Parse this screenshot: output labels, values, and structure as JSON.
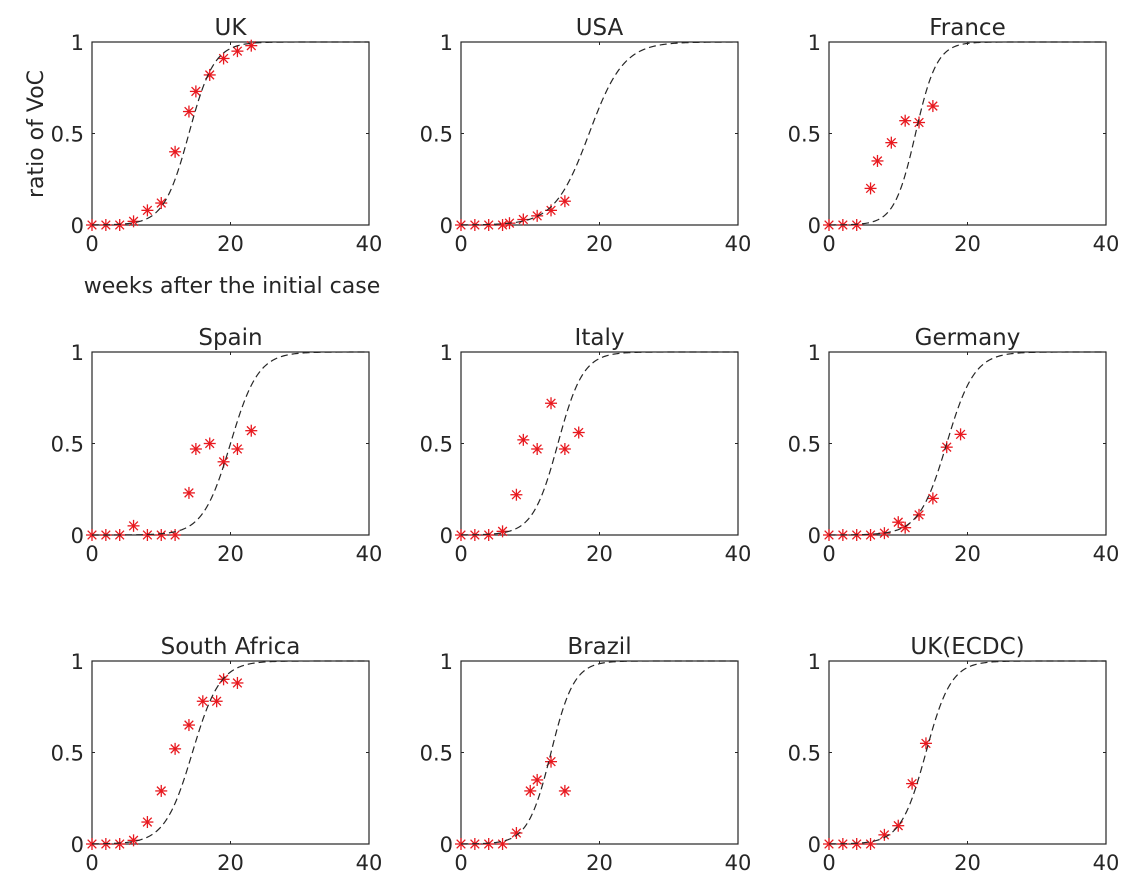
{
  "figure": {
    "ylabel": "ratio of VoC",
    "xlabel": "weeks after the initial case"
  },
  "style": {
    "marker_color": "#e8191f",
    "curve_color": "#262626",
    "axis_color": "#262626"
  },
  "chart_data": [
    {
      "type": "scatter",
      "title": "UK",
      "xlim": [
        0,
        40
      ],
      "ylim": [
        0,
        1
      ],
      "xticks": [
        0,
        20,
        40
      ],
      "yticks": [
        0,
        0.5,
        1
      ],
      "series": [
        {
          "kind": "observed",
          "marker": "asterisk",
          "x": [
            0,
            2,
            4,
            6,
            8,
            10,
            12,
            14,
            15,
            17,
            19,
            21,
            23
          ],
          "y": [
            0,
            0,
            0,
            0.02,
            0.08,
            0.12,
            0.4,
            0.62,
            0.73,
            0.82,
            0.91,
            0.95,
            0.98
          ]
        },
        {
          "kind": "fitted",
          "line": "dashed",
          "midpoint": 14,
          "rate": 0.55
        }
      ]
    },
    {
      "type": "scatter",
      "title": "USA",
      "xlim": [
        0,
        40
      ],
      "ylim": [
        0,
        1
      ],
      "xticks": [
        0,
        20,
        40
      ],
      "yticks": [
        0,
        0.5,
        1
      ],
      "series": [
        {
          "kind": "observed",
          "marker": "asterisk",
          "x": [
            0,
            2,
            4,
            6,
            7,
            9,
            11,
            13,
            15
          ],
          "y": [
            0,
            0,
            0,
            0,
            0.01,
            0.03,
            0.05,
            0.08,
            0.13
          ]
        },
        {
          "kind": "fitted",
          "line": "dashed",
          "midpoint": 18.5,
          "rate": 0.4
        }
      ]
    },
    {
      "type": "scatter",
      "title": "France",
      "xlim": [
        0,
        40
      ],
      "ylim": [
        0,
        1
      ],
      "xticks": [
        0,
        20,
        40
      ],
      "yticks": [
        0,
        0.5,
        1
      ],
      "series": [
        {
          "kind": "observed",
          "marker": "asterisk",
          "x": [
            0,
            2,
            4,
            6,
            7,
            9,
            11,
            13,
            15
          ],
          "y": [
            0,
            0,
            0,
            0.2,
            0.35,
            0.45,
            0.57,
            0.56,
            0.65
          ]
        },
        {
          "kind": "fitted",
          "line": "dashed",
          "midpoint": 12.5,
          "rate": 0.65
        }
      ]
    },
    {
      "type": "scatter",
      "title": "Spain",
      "xlim": [
        0,
        40
      ],
      "ylim": [
        0,
        1
      ],
      "xticks": [
        0,
        20,
        40
      ],
      "yticks": [
        0,
        0.5,
        1
      ],
      "series": [
        {
          "kind": "observed",
          "marker": "asterisk",
          "x": [
            0,
            2,
            4,
            6,
            8,
            10,
            12,
            14,
            15,
            17,
            19,
            21,
            23
          ],
          "y": [
            0,
            0,
            0,
            0.05,
            0,
            0,
            0,
            0.23,
            0.47,
            0.5,
            0.4,
            0.47,
            0.57
          ]
        },
        {
          "kind": "fitted",
          "line": "dashed",
          "midpoint": 20,
          "rate": 0.5
        }
      ]
    },
    {
      "type": "scatter",
      "title": "Italy",
      "xlim": [
        0,
        40
      ],
      "ylim": [
        0,
        1
      ],
      "xticks": [
        0,
        20,
        40
      ],
      "yticks": [
        0,
        0.5,
        1
      ],
      "series": [
        {
          "kind": "observed",
          "marker": "asterisk",
          "x": [
            0,
            2,
            4,
            6,
            8,
            9,
            11,
            13,
            15,
            17
          ],
          "y": [
            0,
            0,
            0,
            0.02,
            0.22,
            0.52,
            0.47,
            0.72,
            0.47,
            0.56
          ]
        },
        {
          "kind": "fitted",
          "line": "dashed",
          "midpoint": 14,
          "rate": 0.55
        }
      ]
    },
    {
      "type": "scatter",
      "title": "Germany",
      "xlim": [
        0,
        40
      ],
      "ylim": [
        0,
        1
      ],
      "xticks": [
        0,
        20,
        40
      ],
      "yticks": [
        0,
        0.5,
        1
      ],
      "series": [
        {
          "kind": "observed",
          "marker": "asterisk",
          "x": [
            0,
            2,
            4,
            6,
            8,
            10,
            11,
            13,
            15,
            17,
            19
          ],
          "y": [
            0,
            0,
            0,
            0,
            0.01,
            0.07,
            0.04,
            0.11,
            0.2,
            0.48,
            0.55
          ]
        },
        {
          "kind": "fitted",
          "line": "dashed",
          "midpoint": 17,
          "rate": 0.5
        }
      ]
    },
    {
      "type": "scatter",
      "title": "South Africa",
      "xlim": [
        0,
        40
      ],
      "ylim": [
        0,
        1
      ],
      "xticks": [
        0,
        20,
        40
      ],
      "yticks": [
        0,
        0.5,
        1
      ],
      "series": [
        {
          "kind": "observed",
          "marker": "asterisk",
          "x": [
            0,
            2,
            4,
            6,
            8,
            10,
            12,
            14,
            16,
            18,
            19,
            21
          ],
          "y": [
            0,
            0,
            0,
            0.02,
            0.12,
            0.29,
            0.52,
            0.65,
            0.78,
            0.78,
            0.9,
            0.88
          ]
        },
        {
          "kind": "fitted",
          "line": "dashed",
          "midpoint": 14.5,
          "rate": 0.5
        }
      ]
    },
    {
      "type": "scatter",
      "title": "Brazil",
      "xlim": [
        0,
        40
      ],
      "ylim": [
        0,
        1
      ],
      "xticks": [
        0,
        20,
        40
      ],
      "yticks": [
        0,
        0.5,
        1
      ],
      "series": [
        {
          "kind": "observed",
          "marker": "asterisk",
          "x": [
            0,
            2,
            4,
            6,
            8,
            10,
            11,
            13,
            15
          ],
          "y": [
            0,
            0,
            0,
            0,
            0.06,
            0.29,
            0.35,
            0.45,
            0.29
          ]
        },
        {
          "kind": "fitted",
          "line": "dashed",
          "midpoint": 13,
          "rate": 0.6
        }
      ]
    },
    {
      "type": "scatter",
      "title": "UK(ECDC)",
      "xlim": [
        0,
        40
      ],
      "ylim": [
        0,
        1
      ],
      "xticks": [
        0,
        20,
        40
      ],
      "yticks": [
        0,
        0.5,
        1
      ],
      "series": [
        {
          "kind": "observed",
          "marker": "asterisk",
          "x": [
            0,
            2,
            4,
            6,
            8,
            10,
            12,
            14
          ],
          "y": [
            0,
            0,
            0,
            0,
            0.05,
            0.1,
            0.33,
            0.55
          ]
        },
        {
          "kind": "fitted",
          "line": "dashed",
          "midpoint": 14,
          "rate": 0.55
        }
      ]
    }
  ]
}
